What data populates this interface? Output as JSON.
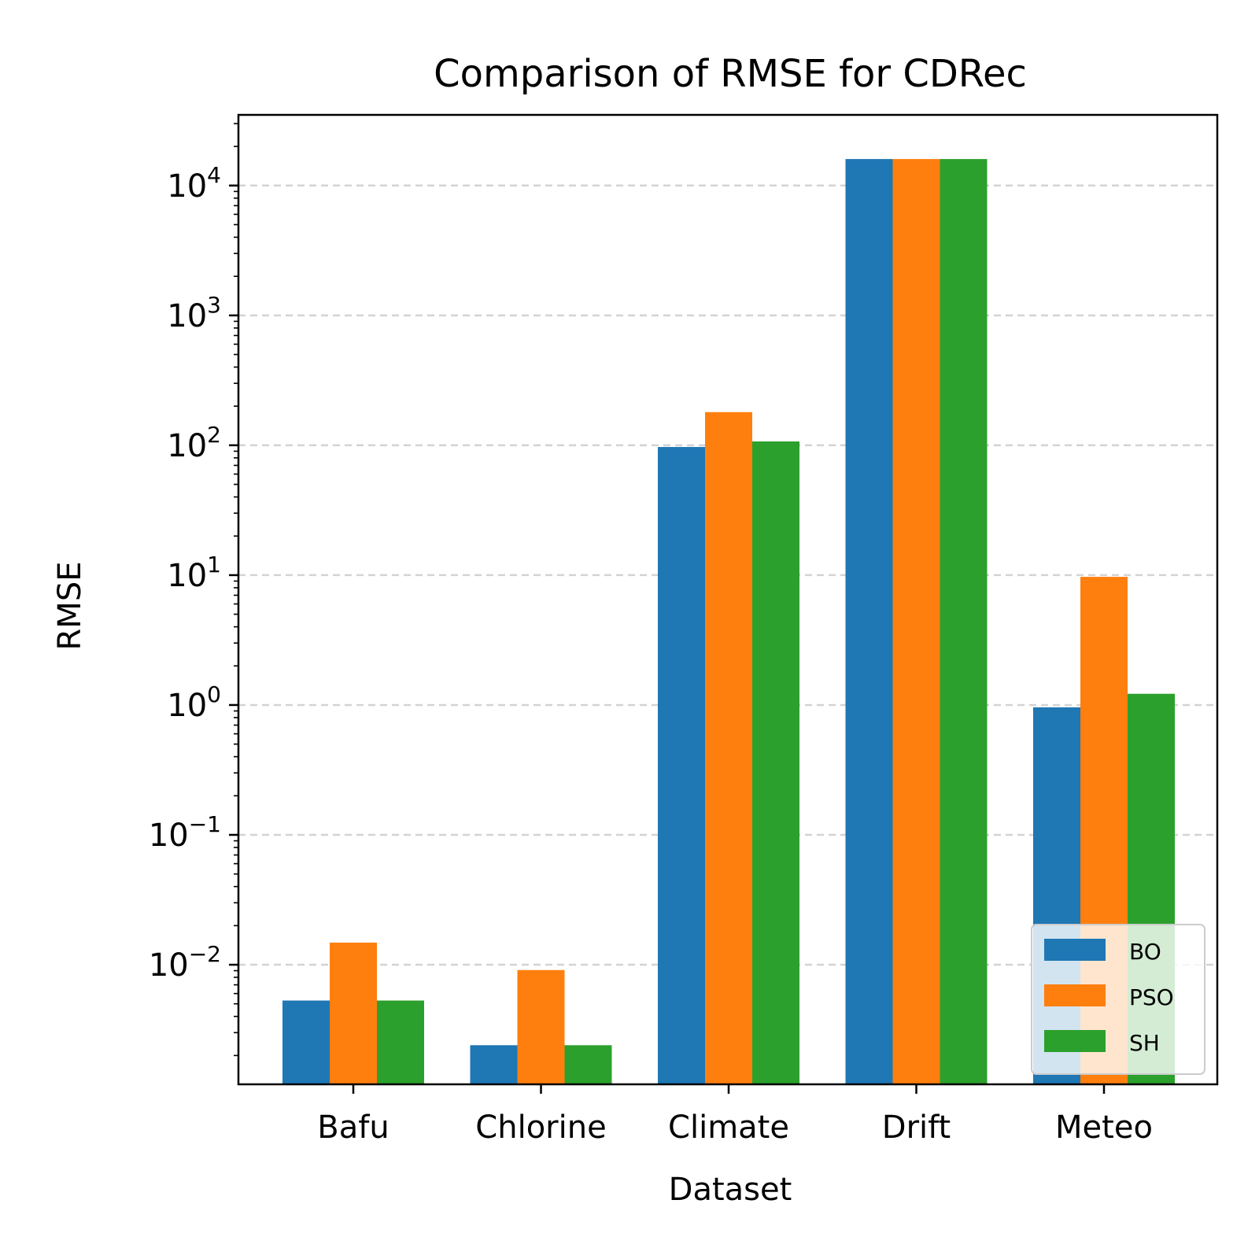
{
  "chart_data": {
    "type": "bar",
    "title": "Comparison of RMSE for CDRec",
    "xlabel": "Dataset",
    "ylabel": "RMSE",
    "yscale": "log",
    "ylim": [
      0.0012,
      35000
    ],
    "grid": "horizontal dashed",
    "legend_position": "lower right",
    "categories": [
      "Bafu",
      "Chlorine",
      "Climate",
      "Drift",
      "Meteo"
    ],
    "series": [
      {
        "name": "BO",
        "color": "#1f77b4",
        "values": [
          0.0053,
          0.0024,
          97,
          16000,
          0.96
        ]
      },
      {
        "name": "PSO",
        "color": "#ff7f0e",
        "values": [
          0.0148,
          0.0091,
          180,
          16000,
          9.7
        ]
      },
      {
        "name": "SH",
        "color": "#2ca02c",
        "values": [
          0.0053,
          0.0024,
          107,
          16000,
          1.22
        ]
      }
    ],
    "y_ticks": [
      {
        "base": "10",
        "exp": "−2",
        "value": 0.01
      },
      {
        "base": "10",
        "exp": "−1",
        "value": 0.1
      },
      {
        "base": "10",
        "exp": "0",
        "value": 1
      },
      {
        "base": "10",
        "exp": "1",
        "value": 10
      },
      {
        "base": "10",
        "exp": "2",
        "value": 100
      },
      {
        "base": "10",
        "exp": "3",
        "value": 1000
      },
      {
        "base": "10",
        "exp": "4",
        "value": 10000
      }
    ]
  }
}
